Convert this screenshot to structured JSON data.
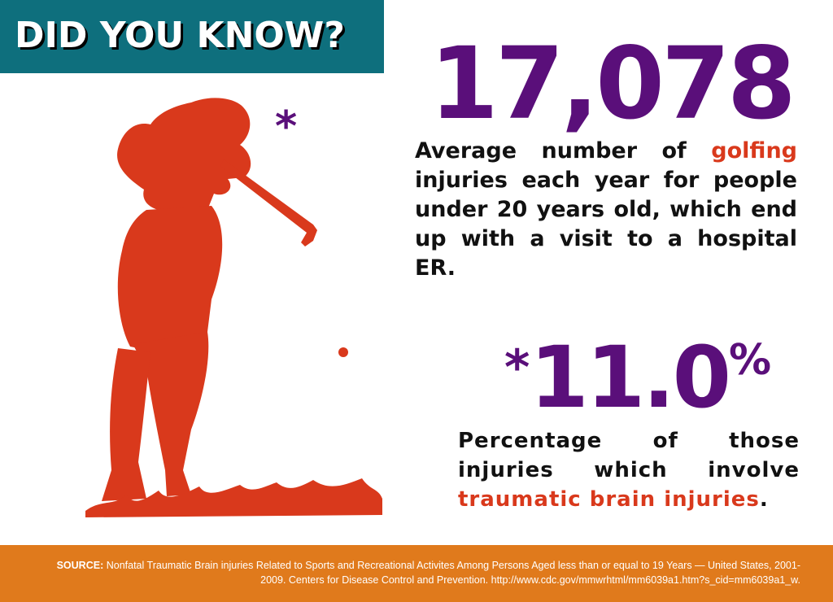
{
  "banner": {
    "title": "DID YOU KNOW?"
  },
  "stat1": {
    "value": "17,078",
    "desc_before": "Average number of ",
    "desc_highlight": "golfing",
    "desc_after": " injuries each year for people under 20 years old, which end up with a visit to a hospital  ER."
  },
  "asterisk": "*",
  "stat2": {
    "asterisk": "*",
    "value": "11.0",
    "unit": "%",
    "desc_before": "Percentage of those injuries which involve ",
    "desc_highlight": "traumatic brain injuries",
    "desc_after": "."
  },
  "footer": {
    "source_label": "SOURCE:",
    "source_text": " Nonfatal Traumatic Brain injuries Related to Sports and Recreational Activites Among Persons Aged less than or equal to 19 Years — United States, 2001-2009.  Centers for Disease Control and Prevention. http://www.cdc.gov/mmwrhtml/mm6039a1.htm?s_cid=mm6039a1_w."
  },
  "colors": {
    "banner": "#0e6f7d",
    "purple": "#5a0f7a",
    "orange_red": "#d9391c",
    "footer": "#e07a1c"
  },
  "icons": [
    "golfer-silhouette",
    "golf-ball",
    "grass"
  ]
}
